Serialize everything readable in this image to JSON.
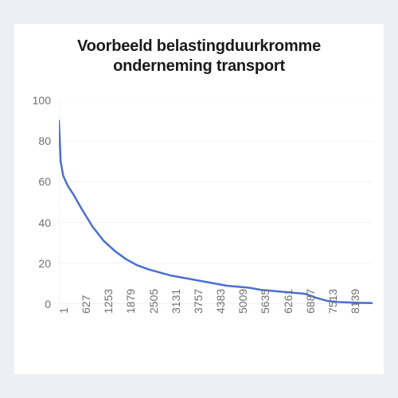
{
  "chart": {
    "type": "line",
    "title_line1": "Voorbeeld belastingduurkromme",
    "title_line2": "onderneming transport",
    "title_fontsize": 20,
    "background_color": "#ffffff",
    "page_background_color": "#edeff5",
    "axis_color": "#b9b9b9",
    "grid_color": "#dcdcdc",
    "tick_label_color": "#6f6f6f",
    "tick_fontsize": 14,
    "series": {
      "color": "#4a6fd0",
      "width": 2.5,
      "x": [
        1,
        50,
        120,
        250,
        400,
        627,
        940,
        1253,
        1566,
        1879,
        2192,
        2505,
        2818,
        3131,
        3444,
        3757,
        4070,
        4383,
        4696,
        5009,
        5322,
        5635,
        5948,
        6261,
        6574,
        6887,
        7200,
        7513,
        7826,
        8139,
        8452,
        8760
      ],
      "y": [
        90,
        70,
        63,
        58,
        54,
        47,
        38,
        31,
        26,
        22,
        19,
        17,
        15.5,
        14,
        13,
        12,
        11,
        10,
        9,
        8.5,
        8,
        7,
        6.5,
        6,
        5.5,
        5,
        3,
        1.5,
        1,
        0.8,
        0.6,
        0.5
      ]
    },
    "ylim": [
      0,
      100
    ],
    "yticks": [
      0,
      20,
      40,
      60,
      80,
      100
    ],
    "xlim": [
      1,
      8760
    ],
    "xticks": [
      1,
      627,
      1253,
      1879,
      2505,
      3131,
      3757,
      4383,
      5009,
      5635,
      6261,
      6887,
      7513,
      8139
    ],
    "xtick_rotation": -90,
    "grid_horizontal": true
  }
}
